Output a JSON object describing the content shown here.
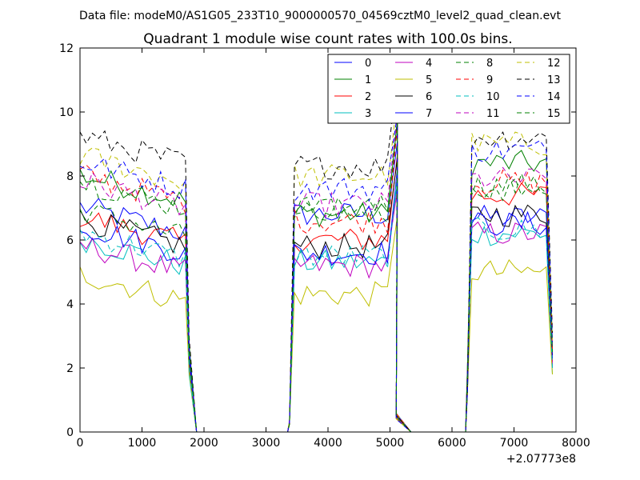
{
  "header": {
    "data_file": "Data file: modeM0/AS1G05_233T10_9000000570_04569cztM0_level2_quad_clean.evt"
  },
  "chart_data": {
    "type": "line",
    "title": "Quadrant 1 module wise count rates with 100.0s bins.",
    "xlabel": "",
    "ylabel": "",
    "x_offset_label": "+2.07773e8",
    "xlim": [
      0,
      8000
    ],
    "ylim": [
      0,
      12
    ],
    "xticks": [
      0,
      1000,
      2000,
      3000,
      4000,
      5000,
      6000,
      7000,
      8000
    ],
    "yticks": [
      0,
      2,
      4,
      6,
      8,
      10,
      12
    ],
    "legend_position": "top-right",
    "segments": [
      {
        "x_start": 0,
        "n": 18
      },
      {
        "x_start": 3460,
        "n": 16
      },
      {
        "x_start": 6320,
        "n": 13
      }
    ],
    "transition_x": {
      "seg1_low": 1760,
      "seg1_zero": 1880,
      "gap1_start": 1960,
      "gap1_end": 3350,
      "seg2_low": 3380,
      "seg2_zero": 3440,
      "seg2_end_low": 5100,
      "seg2_end_zero": 5240,
      "gap2_start": 5340,
      "gap2_end": 6220,
      "seg3_low": 6250,
      "seg3_zero": 6300,
      "seg3_end_low": 7620
    },
    "series": [
      {
        "name": "0",
        "color": "#0000ff",
        "dash": "solid",
        "means": [
          6.6,
          6.8,
          6.7
        ],
        "end_value": 2.0
      },
      {
        "name": "1",
        "color": "#008000",
        "dash": "solid",
        "means": [
          7.6,
          6.8,
          8.4
        ],
        "end_value": 2.6
      },
      {
        "name": "2",
        "color": "#ff0000",
        "dash": "solid",
        "means": [
          6.3,
          6.0,
          7.4
        ],
        "end_value": 2.2
      },
      {
        "name": "3",
        "color": "#00bfbf",
        "dash": "solid",
        "means": [
          5.6,
          5.3,
          6.2
        ],
        "end_value": 1.8
      },
      {
        "name": "4",
        "color": "#bf00bf",
        "dash": "solid",
        "means": [
          5.4,
          5.2,
          6.2
        ],
        "end_value": 2.1
      },
      {
        "name": "5",
        "color": "#bfbf00",
        "dash": "solid",
        "means": [
          4.5,
          4.3,
          5.0
        ],
        "end_value": 1.8
      },
      {
        "name": "6",
        "color": "#000000",
        "dash": "solid",
        "means": [
          6.2,
          5.8,
          6.8
        ],
        "end_value": 2.4
      },
      {
        "name": "7",
        "color": "#0000ff",
        "dash": "solid",
        "means": [
          6.0,
          5.6,
          6.5
        ],
        "end_value": 2.3
      },
      {
        "name": "8",
        "color": "#008000",
        "dash": "dashed",
        "means": [
          6.5,
          6.9,
          7.7
        ],
        "end_value": 2.5
      },
      {
        "name": "9",
        "color": "#ff0000",
        "dash": "dashed",
        "means": [
          7.6,
          6.6,
          7.8
        ],
        "end_value": 2.6
      },
      {
        "name": "10",
        "color": "#00bfbf",
        "dash": "dashed",
        "means": [
          5.8,
          5.5,
          6.3
        ],
        "end_value": 2.0
      },
      {
        "name": "11",
        "color": "#bf00bf",
        "dash": "dashed",
        "means": [
          7.4,
          7.1,
          7.9
        ],
        "end_value": 2.7
      },
      {
        "name": "12",
        "color": "#bfbf00",
        "dash": "dashed",
        "means": [
          8.2,
          8.0,
          9.0
        ],
        "end_value": 2.9
      },
      {
        "name": "13",
        "color": "#000000",
        "dash": "dashed",
        "means": [
          8.8,
          8.3,
          9.2
        ],
        "end_value": 3.1
      },
      {
        "name": "14",
        "color": "#0000ff",
        "dash": "dashed",
        "means": [
          8.0,
          7.6,
          8.8
        ],
        "end_value": 2.8
      },
      {
        "name": "15",
        "color": "#008000",
        "dash": "dashed",
        "means": [
          7.4,
          7.0,
          7.6
        ],
        "end_value": 2.5
      }
    ]
  }
}
